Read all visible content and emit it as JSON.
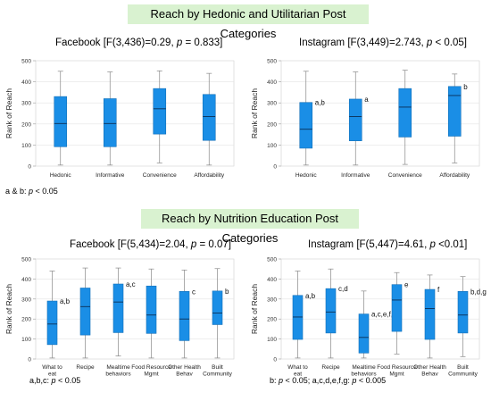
{
  "banners": {
    "hedonic": "Reach by Hedonic and Utilitarian Post Categories",
    "nutrition": "Reach by Nutrition Education Post Categories"
  },
  "notes": {
    "hedonic_fb": "a & b: ",
    "hedonic_fb_p": "p",
    "hedonic_fb_tail": " < 0.05",
    "nutrition_fb": "a,b,c: ",
    "nutrition_fb_p": "p",
    "nutrition_fb_tail": " < 0.05",
    "nutrition_ig_1": "b: ",
    "nutrition_ig_p1": "p",
    "nutrition_ig_2": " < 0.05; a,c,d,e,f,g: ",
    "nutrition_ig_p2": "p",
    "nutrition_ig_3": " < 0.005"
  },
  "colors": {
    "box": "#1a8ee6",
    "box_stroke": "#1470b8",
    "whisker": "#888888",
    "axis": "#999999",
    "banner": "#d9f2d0"
  },
  "chart_data": [
    {
      "type": "boxplot",
      "title": "Facebook [F(3,436)=0.29, p = 0.833]",
      "title_plain": "Facebook [F(3,436)=0.29, ",
      "title_p": "p",
      "title_tail": " = 0.833]",
      "ylabel": "Rank of Reach",
      "ylim": [
        0,
        500
      ],
      "yticks": [
        0,
        100,
        200,
        300,
        400,
        500
      ],
      "grid": true,
      "categories": [
        "Hedonic",
        "Informative",
        "Convenience",
        "Affordability"
      ],
      "boxes": [
        {
          "min": 5,
          "q1": 92,
          "median": 202,
          "q3": 330,
          "max": 450,
          "letter": ""
        },
        {
          "min": 5,
          "q1": 92,
          "median": 202,
          "q3": 320,
          "max": 447,
          "letter": ""
        },
        {
          "min": 15,
          "q1": 152,
          "median": 272,
          "q3": 368,
          "max": 452,
          "letter": ""
        },
        {
          "min": 5,
          "q1": 122,
          "median": 235,
          "q3": 340,
          "max": 440,
          "letter": ""
        }
      ]
    },
    {
      "type": "boxplot",
      "title": "Instagram [F(3,449)=2.743, p < 0.05]",
      "title_plain": "Instagram [F(3,449)=2.743, ",
      "title_p": "p",
      "title_tail": " < 0.05]",
      "ylabel": "Rank of Reach",
      "ylim": [
        0,
        500
      ],
      "yticks": [
        0,
        100,
        200,
        300,
        400,
        500
      ],
      "grid": true,
      "categories": [
        "Hedonic",
        "Informative",
        "Convenience",
        "Affordability"
      ],
      "boxes": [
        {
          "min": 5,
          "q1": 85,
          "median": 175,
          "q3": 302,
          "max": 450,
          "letter": "a,b"
        },
        {
          "min": 5,
          "q1": 120,
          "median": 235,
          "q3": 318,
          "max": 447,
          "letter": "a"
        },
        {
          "min": 8,
          "q1": 138,
          "median": 280,
          "q3": 368,
          "max": 455,
          "letter": ""
        },
        {
          "min": 15,
          "q1": 142,
          "median": 335,
          "q3": 378,
          "max": 437,
          "letter": "b"
        }
      ]
    },
    {
      "type": "boxplot",
      "title": "Facebook [F(5,434)=2.04, p = 0.07]",
      "title_plain": "Facebook [F(5,434)=2.04, ",
      "title_p": "p",
      "title_tail": " = 0.07]",
      "ylabel": "Rank of Reach",
      "ylim": [
        0,
        500
      ],
      "yticks": [
        0,
        100,
        200,
        300,
        400,
        500
      ],
      "grid": true,
      "categories": [
        "What to eat",
        "Recipe",
        "Mealtime behaviors",
        "Food Resource Mgmt",
        "Other Health Behav",
        "Built Community"
      ],
      "boxes": [
        {
          "min": 5,
          "q1": 72,
          "median": 175,
          "q3": 290,
          "max": 440,
          "letter": "a,b"
        },
        {
          "min": 5,
          "q1": 120,
          "median": 262,
          "q3": 355,
          "max": 455,
          "letter": ""
        },
        {
          "min": 15,
          "q1": 132,
          "median": 285,
          "q3": 375,
          "max": 455,
          "letter": "a,c"
        },
        {
          "min": 5,
          "q1": 128,
          "median": 220,
          "q3": 365,
          "max": 450,
          "letter": ""
        },
        {
          "min": 5,
          "q1": 92,
          "median": 200,
          "q3": 338,
          "max": 445,
          "letter": "c"
        },
        {
          "min": 5,
          "q1": 172,
          "median": 230,
          "q3": 340,
          "max": 452,
          "letter": "b"
        }
      ]
    },
    {
      "type": "boxplot",
      "title": "Instagram [F(5,447)=4.61, p < 0.01]",
      "title_plain": "Instagram [F(5,447)=4.61, ",
      "title_p": "p",
      "title_tail": " <0.01]",
      "ylabel": "Rank of Reach",
      "ylim": [
        0,
        500
      ],
      "yticks": [
        0,
        100,
        200,
        300,
        400,
        500
      ],
      "grid": true,
      "categories": [
        "What to eat",
        "Recipe",
        "Mealtime behaviors",
        "Food Resource Mgmt",
        "Other Health Behav",
        "Built Community"
      ],
      "boxes": [
        {
          "min": 5,
          "q1": 98,
          "median": 210,
          "q3": 318,
          "max": 440,
          "letter": "a,b"
        },
        {
          "min": 5,
          "q1": 130,
          "median": 235,
          "q3": 352,
          "max": 450,
          "letter": "c,d"
        },
        {
          "min": 5,
          "q1": 30,
          "median": 108,
          "q3": 225,
          "max": 340,
          "letter": "a,c,e,f,g"
        },
        {
          "min": 25,
          "q1": 138,
          "median": 295,
          "q3": 372,
          "max": 432,
          "letter": "e"
        },
        {
          "min": 5,
          "q1": 98,
          "median": 252,
          "q3": 348,
          "max": 420,
          "letter": "f"
        },
        {
          "min": 12,
          "q1": 130,
          "median": 220,
          "q3": 338,
          "max": 412,
          "letter": "b,d,g"
        }
      ]
    }
  ]
}
